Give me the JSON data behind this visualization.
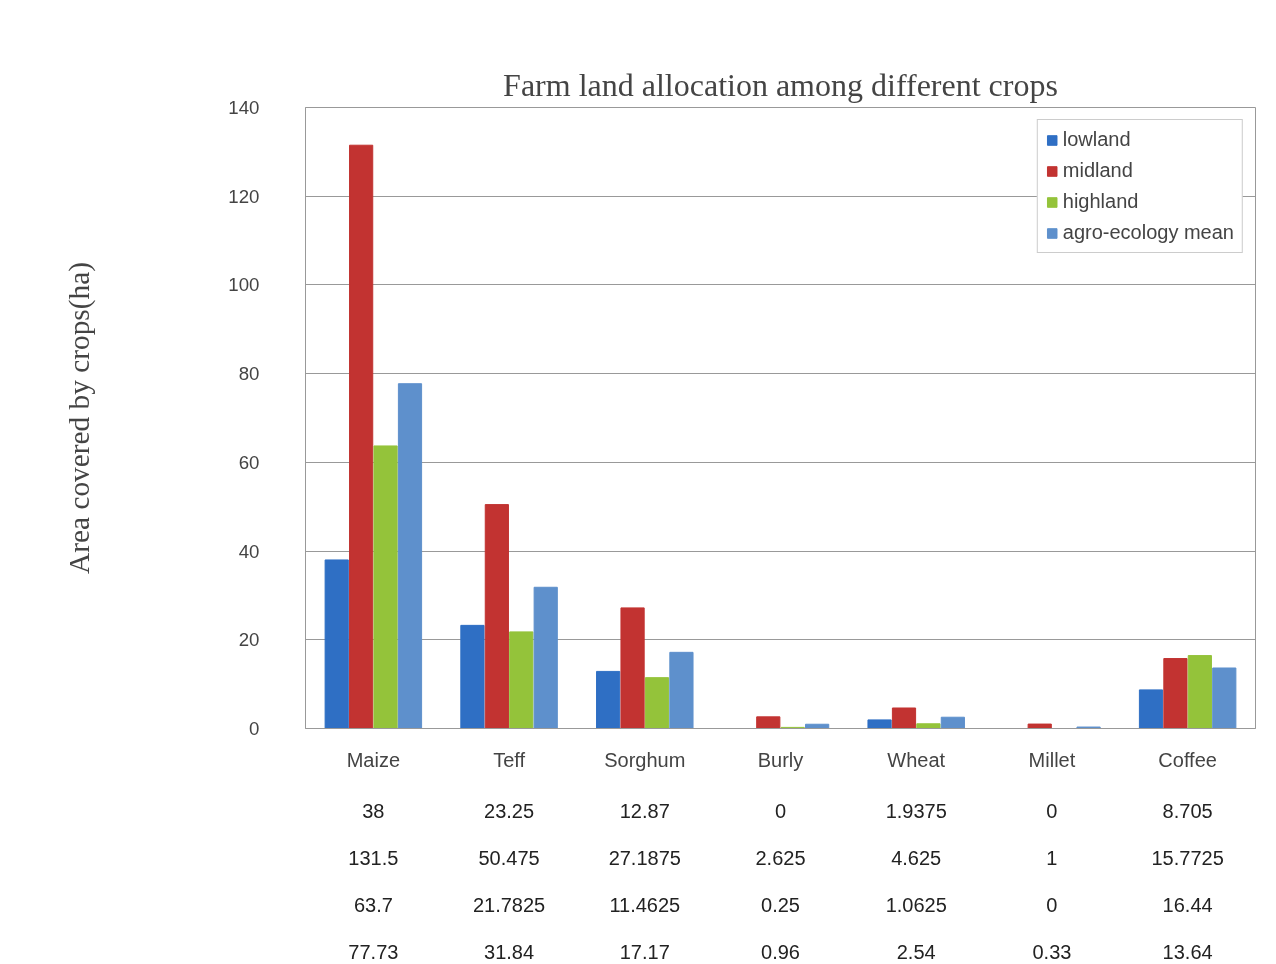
{
  "chart_data": {
    "type": "bar",
    "title": "Farm land allocation among different crops",
    "ylabel": "Area covered by crops(ha)",
    "categories": [
      "Maize",
      "Teff",
      "Sorghum",
      "Burly",
      "Wheat",
      "Millet",
      "Coffee"
    ],
    "series": [
      {
        "name": "lowland",
        "color": "#2f6fc4",
        "values": [
          38,
          23.25,
          12.87,
          0,
          1.9375,
          0,
          8.705
        ]
      },
      {
        "name": "midland",
        "color": "#c23331",
        "values": [
          131.5,
          50.475,
          27.1875,
          2.625,
          4.625,
          1,
          15.7725
        ]
      },
      {
        "name": "highland",
        "color": "#94c33a",
        "values": [
          63.7,
          21.7825,
          11.4625,
          0.25,
          1.0625,
          0,
          16.44
        ]
      },
      {
        "name": "agro-ecology mean",
        "color": "#5e90cc",
        "values": [
          77.73,
          31.84,
          17.17,
          0.96,
          2.54,
          0.33,
          13.64
        ]
      }
    ],
    "ylim": [
      0,
      140
    ],
    "yticks": [
      0,
      20,
      40,
      60,
      80,
      100,
      120,
      140
    ],
    "grid": "y",
    "legend": "top right",
    "data_labels": true
  }
}
